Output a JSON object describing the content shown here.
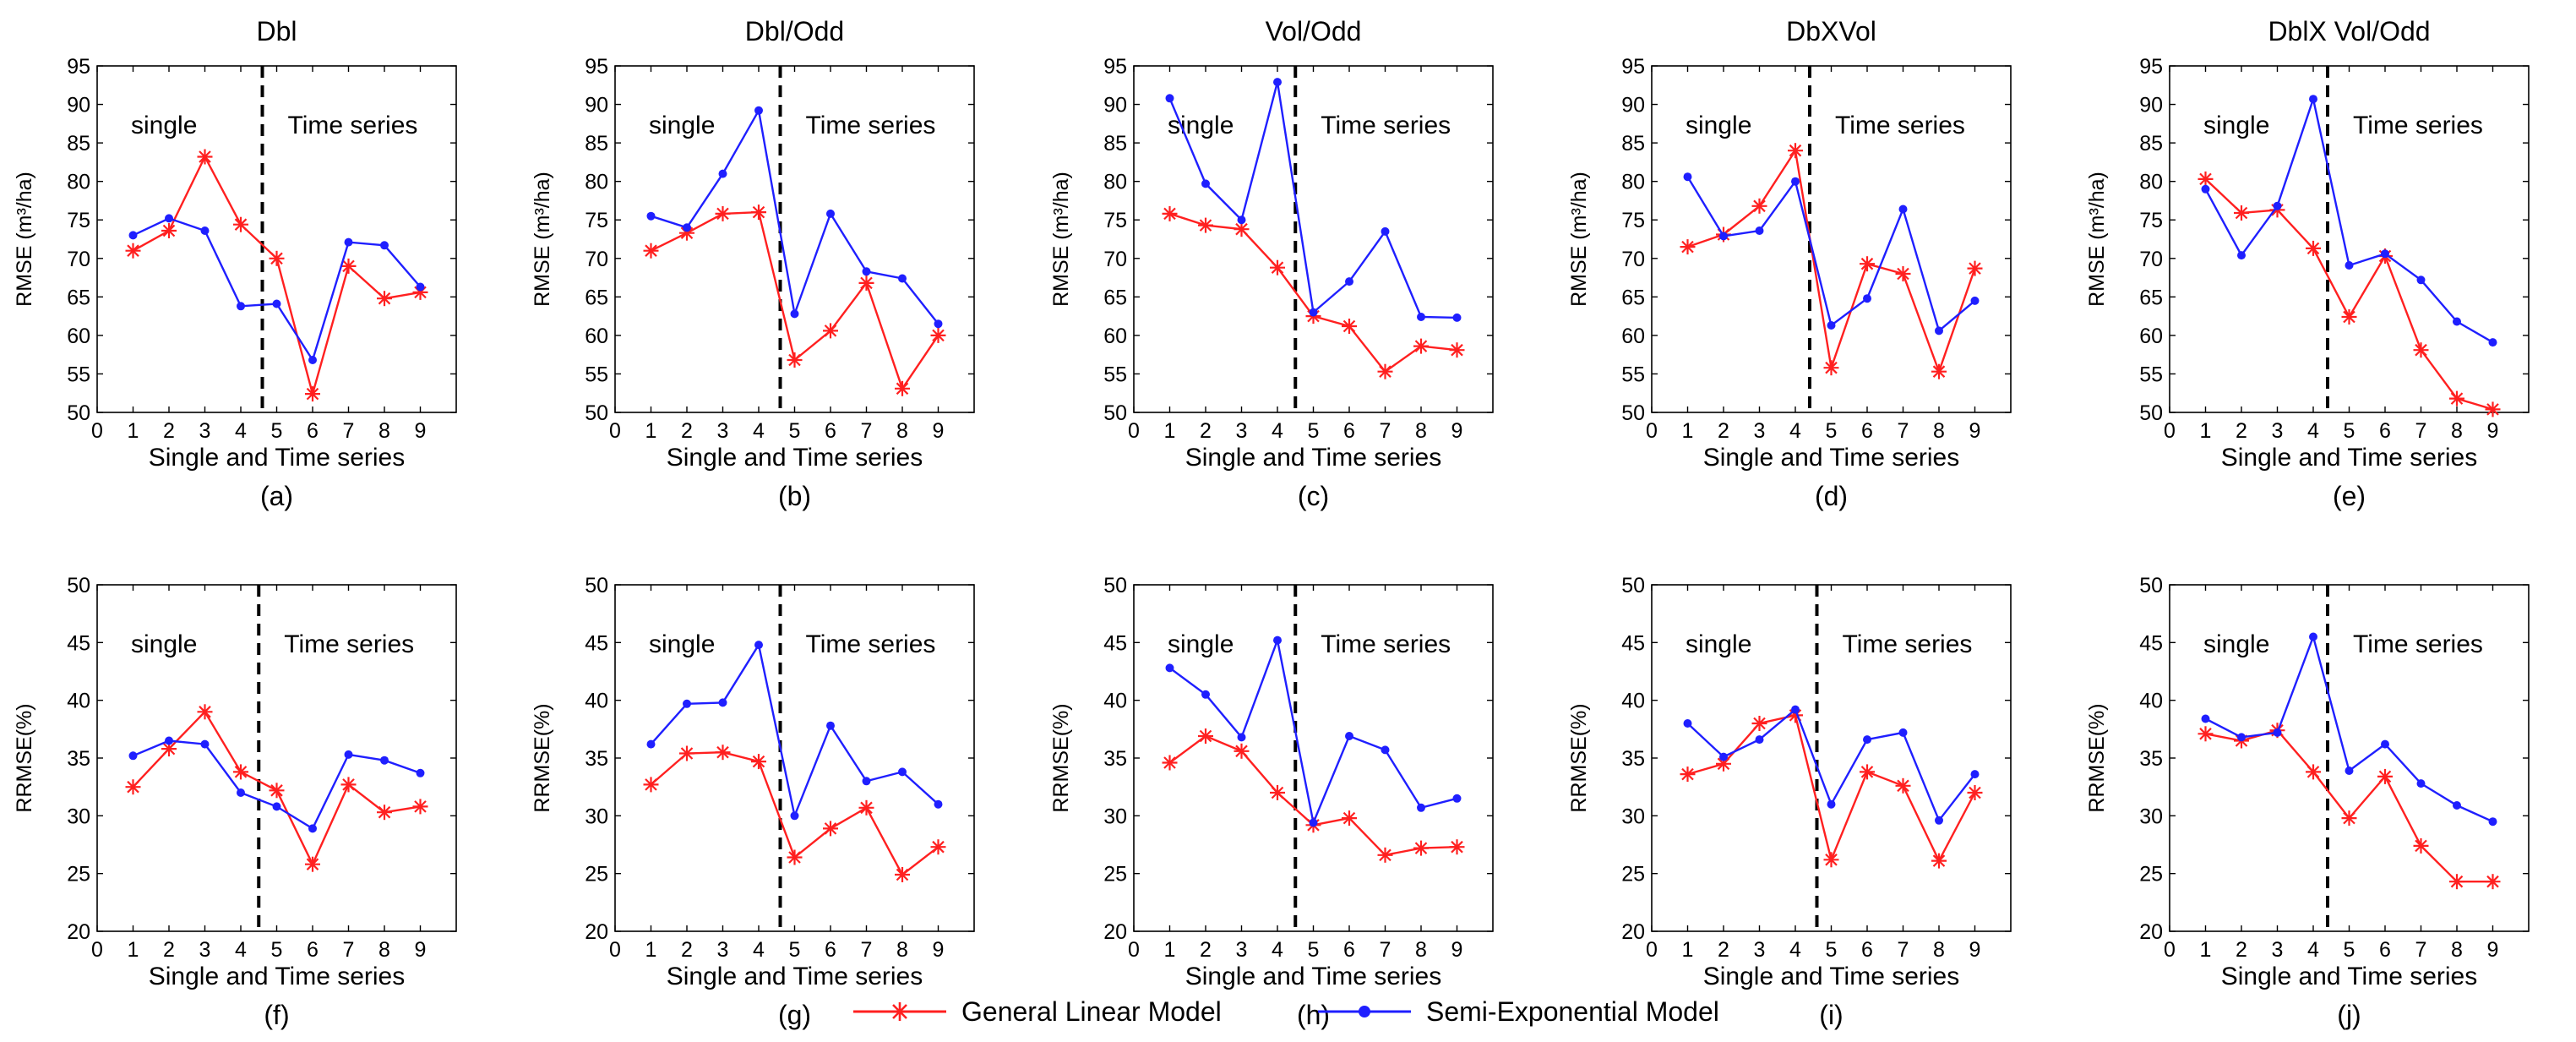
{
  "legend": {
    "items": [
      {
        "label": "General Linear Model",
        "color": "#ff2020",
        "marker": "asterisk"
      },
      {
        "label": "Semi-Exponential Model",
        "color": "#1f1fff",
        "marker": "dot"
      }
    ]
  },
  "chart_data": [
    {
      "type": "line",
      "title": "Dbl",
      "panel_label": "(a)",
      "xlabel": "Single and Time series",
      "ylabel": "RMSE (m³/ha)",
      "xlim": [
        0,
        10
      ],
      "ylim": [
        50,
        95
      ],
      "yticks": [
        50,
        55,
        60,
        65,
        70,
        75,
        80,
        85,
        90,
        95
      ],
      "xticks": [
        0,
        1,
        2,
        3,
        4,
        5,
        6,
        7,
        8,
        9
      ],
      "x": [
        1,
        2,
        3,
        4,
        5,
        6,
        7,
        8,
        9
      ],
      "divider_x": 4.6,
      "region_labels": [
        "single",
        "Time series"
      ],
      "series": [
        {
          "name": "General Linear Model",
          "values": [
            71.0,
            73.6,
            83.2,
            74.4,
            70.0,
            52.4,
            69.0,
            64.8,
            65.6
          ]
        },
        {
          "name": "Semi-Exponential Model",
          "values": [
            73.0,
            75.2,
            73.6,
            63.8,
            64.1,
            56.8,
            72.1,
            71.7,
            66.3
          ]
        }
      ]
    },
    {
      "type": "line",
      "title": "Dbl/Odd",
      "panel_label": "(b)",
      "xlabel": "Single and Time series",
      "ylabel": "RMSE (m³/ha)",
      "xlim": [
        0,
        10
      ],
      "ylim": [
        50,
        95
      ],
      "yticks": [
        50,
        55,
        60,
        65,
        70,
        75,
        80,
        85,
        90,
        95
      ],
      "xticks": [
        0,
        1,
        2,
        3,
        4,
        5,
        6,
        7,
        8,
        9
      ],
      "x": [
        1,
        2,
        3,
        4,
        5,
        6,
        7,
        8,
        9
      ],
      "divider_x": 4.6,
      "region_labels": [
        "single",
        "Time series"
      ],
      "series": [
        {
          "name": "General Linear Model",
          "values": [
            71.0,
            73.3,
            75.8,
            76.0,
            56.8,
            60.6,
            66.8,
            53.1,
            60.0
          ]
        },
        {
          "name": "Semi-Exponential Model",
          "values": [
            75.5,
            74.0,
            81.0,
            89.2,
            62.8,
            75.8,
            68.3,
            67.4,
            61.5
          ]
        }
      ]
    },
    {
      "type": "line",
      "title": "Vol/Odd",
      "panel_label": "(c)",
      "xlabel": "Single and Time series",
      "ylabel": "RMSE (m³/ha)",
      "xlim": [
        0,
        10
      ],
      "ylim": [
        50,
        95
      ],
      "yticks": [
        50,
        55,
        60,
        65,
        70,
        75,
        80,
        85,
        90,
        95
      ],
      "xticks": [
        0,
        1,
        2,
        3,
        4,
        5,
        6,
        7,
        8,
        9
      ],
      "x": [
        1,
        2,
        3,
        4,
        5,
        6,
        7,
        8,
        9
      ],
      "divider_x": 4.5,
      "region_labels": [
        "single",
        "Time series"
      ],
      "series": [
        {
          "name": "General Linear Model",
          "values": [
            75.8,
            74.3,
            73.8,
            68.8,
            62.5,
            61.2,
            55.3,
            58.6,
            58.1
          ]
        },
        {
          "name": "Semi-Exponential Model",
          "values": [
            90.8,
            79.7,
            75.0,
            92.9,
            63.0,
            67.0,
            73.5,
            62.4,
            62.3
          ]
        }
      ]
    },
    {
      "type": "line",
      "title": "DbXVol",
      "panel_label": "(d)",
      "xlabel": "Single and Time series",
      "ylabel": "RMSE (m³/ha)",
      "xlim": [
        0,
        10
      ],
      "ylim": [
        50,
        95
      ],
      "yticks": [
        50,
        55,
        60,
        65,
        70,
        75,
        80,
        85,
        90,
        95
      ],
      "xticks": [
        0,
        1,
        2,
        3,
        4,
        5,
        6,
        7,
        8,
        9
      ],
      "x": [
        1,
        2,
        3,
        4,
        5,
        6,
        7,
        8,
        9
      ],
      "divider_x": 4.4,
      "region_labels": [
        "single",
        "Time series"
      ],
      "series": [
        {
          "name": "General Linear Model",
          "values": [
            71.5,
            73.1,
            76.8,
            84.0,
            55.8,
            69.3,
            68.0,
            55.3,
            68.7
          ]
        },
        {
          "name": "Semi-Exponential Model",
          "values": [
            80.6,
            72.9,
            73.6,
            80.0,
            61.3,
            64.8,
            76.4,
            60.6,
            64.5
          ]
        }
      ]
    },
    {
      "type": "line",
      "title": "DblX Vol/Odd",
      "panel_label": "(e)",
      "xlabel": "Single and Time series",
      "ylabel": "RMSE (m³/ha)",
      "xlim": [
        0,
        10
      ],
      "ylim": [
        50,
        95
      ],
      "yticks": [
        50,
        55,
        60,
        65,
        70,
        75,
        80,
        85,
        90,
        95
      ],
      "xticks": [
        0,
        1,
        2,
        3,
        4,
        5,
        6,
        7,
        8,
        9
      ],
      "x": [
        1,
        2,
        3,
        4,
        5,
        6,
        7,
        8,
        9
      ],
      "divider_x": 4.4,
      "region_labels": [
        "single",
        "Time series"
      ],
      "series": [
        {
          "name": "General Linear Model",
          "values": [
            80.3,
            75.9,
            76.3,
            71.3,
            62.4,
            70.3,
            58.1,
            51.8,
            50.4
          ]
        },
        {
          "name": "Semi-Exponential Model",
          "values": [
            79.0,
            70.4,
            76.8,
            90.7,
            69.1,
            70.6,
            67.2,
            61.8,
            59.1
          ]
        }
      ]
    },
    {
      "type": "line",
      "title": "",
      "panel_label": "(f)",
      "xlabel": "Single and Time series",
      "ylabel": "RRMSE(%)",
      "xlim": [
        0,
        10
      ],
      "ylim": [
        20,
        50
      ],
      "yticks": [
        20,
        25,
        30,
        35,
        40,
        45,
        50
      ],
      "xticks": [
        0,
        1,
        2,
        3,
        4,
        5,
        6,
        7,
        8,
        9
      ],
      "x": [
        1,
        2,
        3,
        4,
        5,
        6,
        7,
        8,
        9
      ],
      "divider_x": 4.5,
      "region_labels": [
        "single",
        "Time series"
      ],
      "series": [
        {
          "name": "General Linear Model",
          "values": [
            32.5,
            35.8,
            39.0,
            33.8,
            32.2,
            25.8,
            32.7,
            30.3,
            30.8
          ]
        },
        {
          "name": "Semi-Exponential Model",
          "values": [
            35.2,
            36.5,
            36.2,
            32.0,
            30.8,
            28.9,
            35.3,
            34.8,
            33.7
          ]
        }
      ]
    },
    {
      "type": "line",
      "title": "",
      "panel_label": "(g)",
      "xlabel": "Single and Time series",
      "ylabel": "RRMSE(%)",
      "xlim": [
        0,
        10
      ],
      "ylim": [
        20,
        50
      ],
      "yticks": [
        20,
        25,
        30,
        35,
        40,
        45,
        50
      ],
      "xticks": [
        0,
        1,
        2,
        3,
        4,
        5,
        6,
        7,
        8,
        9
      ],
      "x": [
        1,
        2,
        3,
        4,
        5,
        6,
        7,
        8,
        9
      ],
      "divider_x": 4.6,
      "region_labels": [
        "single",
        "Time series"
      ],
      "series": [
        {
          "name": "General Linear Model",
          "values": [
            32.7,
            35.4,
            35.5,
            34.7,
            26.4,
            28.9,
            30.7,
            24.9,
            27.3
          ]
        },
        {
          "name": "Semi-Exponential Model",
          "values": [
            36.2,
            39.7,
            39.8,
            44.8,
            30.0,
            37.8,
            33.0,
            33.8,
            31.0
          ]
        }
      ]
    },
    {
      "type": "line",
      "title": "",
      "panel_label": "(h)",
      "xlabel": "Single and Time series",
      "ylabel": "RRMSE(%)",
      "xlim": [
        0,
        10
      ],
      "ylim": [
        20,
        50
      ],
      "yticks": [
        20,
        25,
        30,
        35,
        40,
        45,
        50
      ],
      "xticks": [
        0,
        1,
        2,
        3,
        4,
        5,
        6,
        7,
        8,
        9
      ],
      "x": [
        1,
        2,
        3,
        4,
        5,
        6,
        7,
        8,
        9
      ],
      "divider_x": 4.5,
      "region_labels": [
        "single",
        "Time series"
      ],
      "series": [
        {
          "name": "General Linear Model",
          "values": [
            34.6,
            36.9,
            35.6,
            32.0,
            29.2,
            29.8,
            26.6,
            27.2,
            27.3
          ]
        },
        {
          "name": "Semi-Exponential Model",
          "values": [
            42.8,
            40.5,
            36.8,
            45.2,
            29.4,
            36.9,
            35.7,
            30.7,
            31.5
          ]
        }
      ]
    },
    {
      "type": "line",
      "title": "",
      "panel_label": "(i)",
      "xlabel": "Single and Time series",
      "ylabel": "RRMSE(%)",
      "xlim": [
        0,
        10
      ],
      "ylim": [
        20,
        50
      ],
      "yticks": [
        20,
        25,
        30,
        35,
        40,
        45,
        50
      ],
      "xticks": [
        0,
        1,
        2,
        3,
        4,
        5,
        6,
        7,
        8,
        9
      ],
      "x": [
        1,
        2,
        3,
        4,
        5,
        6,
        7,
        8,
        9
      ],
      "divider_x": 4.6,
      "region_labels": [
        "single",
        "Time series"
      ],
      "series": [
        {
          "name": "General Linear Model",
          "values": [
            33.6,
            34.5,
            38.0,
            38.7,
            26.2,
            33.8,
            32.6,
            26.1,
            32.0
          ]
        },
        {
          "name": "Semi-Exponential Model",
          "values": [
            38.0,
            35.1,
            36.6,
            39.2,
            31.0,
            36.6,
            37.2,
            29.6,
            33.6
          ]
        }
      ]
    },
    {
      "type": "line",
      "title": "",
      "panel_label": "(j)",
      "xlabel": "Single and Time series",
      "ylabel": "RRMSE(%)",
      "xlim": [
        0,
        10
      ],
      "ylim": [
        20,
        50
      ],
      "yticks": [
        20,
        25,
        30,
        35,
        40,
        45,
        50
      ],
      "xticks": [
        0,
        1,
        2,
        3,
        4,
        5,
        6,
        7,
        8,
        9
      ],
      "x": [
        1,
        2,
        3,
        4,
        5,
        6,
        7,
        8,
        9
      ],
      "divider_x": 4.4,
      "region_labels": [
        "single",
        "Time series"
      ],
      "series": [
        {
          "name": "General Linear Model",
          "values": [
            37.1,
            36.5,
            37.4,
            33.8,
            29.8,
            33.4,
            27.4,
            24.3,
            24.3
          ]
        },
        {
          "name": "Semi-Exponential Model",
          "values": [
            38.4,
            36.8,
            37.2,
            45.5,
            33.9,
            36.2,
            32.8,
            30.9,
            29.5
          ]
        }
      ]
    }
  ]
}
